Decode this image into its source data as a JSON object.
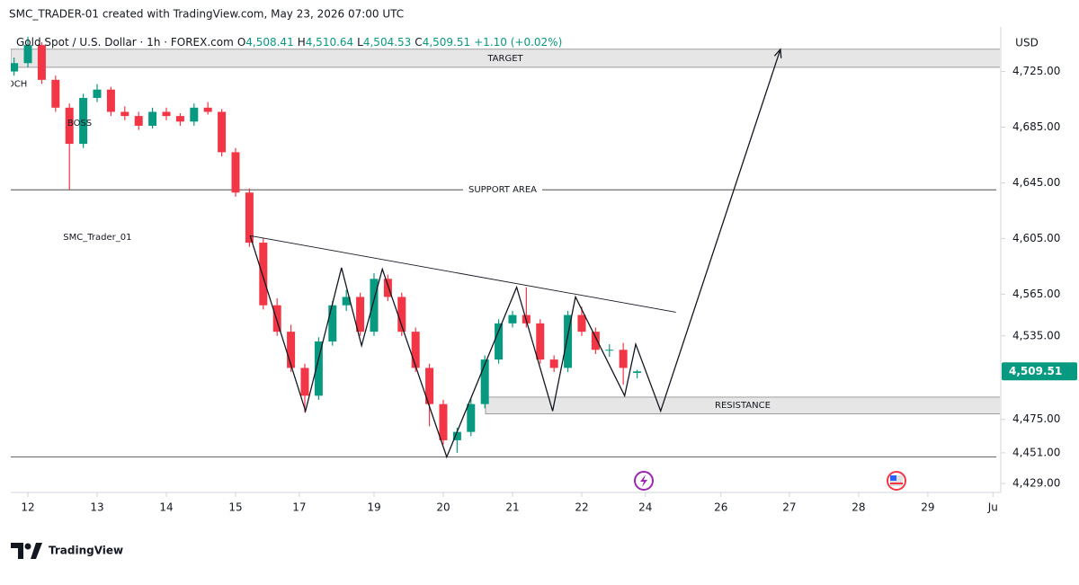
{
  "header": "SMC_TRADER-01 created with TradingView.com, May 23, 2026 07:00 UTC",
  "brand": "TradingView",
  "chart_data": {
    "type": "candlestick",
    "symbol": "Gold Spot / U.S. Dollar · 1h · FOREX.com",
    "legend": {
      "o": "O",
      "open": {
        "value": 4508.41,
        "label": "4,508.41"
      },
      "h": "H",
      "high": {
        "value": 4510.64,
        "label": "4,510.64"
      },
      "l": "L",
      "low": {
        "value": 4504.53,
        "label": "4,504.53"
      },
      "c": "C",
      "close": {
        "value": 4509.51,
        "label": "4,509.51"
      },
      "change": "+1.10 (+0.02%)"
    },
    "currency": "USD",
    "up_color": "#089981",
    "down_color": "#f23645",
    "x": [
      -0.2,
      0,
      0.2,
      0.4,
      0.6,
      0.8,
      1,
      1.2,
      1.4,
      1.6,
      1.8,
      2,
      2.2,
      2.4,
      2.6,
      2.8,
      3,
      3.2,
      3.4,
      3.6,
      3.8,
      4,
      4.2,
      4.4,
      4.6,
      4.8,
      5,
      5.2,
      5.4,
      5.6,
      5.8,
      6,
      6.2,
      6.4,
      6.6,
      6.8,
      7,
      7.2,
      7.4,
      7.6,
      7.8,
      8,
      8.2,
      8.4,
      8.6,
      8.8
    ],
    "open": [
      4725,
      4731,
      4744,
      4719,
      4699,
      4673,
      4706,
      4712,
      4696,
      4693,
      4686,
      4696,
      4693,
      4689,
      4699,
      4696,
      4667,
      4638,
      4602,
      4557,
      4538,
      4512,
      4492,
      4531,
      4557,
      4563,
      4538,
      4576,
      4563,
      4538,
      4512,
      4486,
      4460,
      4466,
      4486,
      4518,
      4544,
      4550,
      4544,
      4518,
      4512,
      4550,
      4538,
      4525,
      4525,
      4508.41
    ],
    "high": [
      4735,
      4750,
      4746,
      4722,
      4702,
      4709,
      4716,
      4714,
      4700,
      4696,
      4699,
      4699,
      4695,
      4702,
      4703,
      4698,
      4670,
      4641,
      4605,
      4562,
      4543,
      4515,
      4534,
      4560,
      4568,
      4566,
      4580,
      4579,
      4566,
      4541,
      4515,
      4489,
      4469,
      4490,
      4521,
      4547,
      4553,
      4570,
      4547,
      4521,
      4553,
      4556,
      4541,
      4529,
      4530,
      4510.64
    ],
    "low": [
      4722,
      4728,
      4716,
      4696,
      4640,
      4670,
      4703,
      4693,
      4690,
      4683,
      4684,
      4690,
      4686,
      4686,
      4694,
      4664,
      4635,
      4599,
      4554,
      4535,
      4509,
      4480,
      4489,
      4528,
      4553,
      4535,
      4535,
      4560,
      4535,
      4509,
      4470,
      4457,
      4451,
      4463,
      4483,
      4515,
      4541,
      4541,
      4515,
      4509,
      4509,
      4535,
      4522,
      4520,
      4500,
      4504.53
    ],
    "close": [
      4731,
      4744,
      4719,
      4699,
      4673,
      4706,
      4712,
      4696,
      4693,
      4686,
      4696,
      4693,
      4689,
      4699,
      4696,
      4667,
      4638,
      4602,
      4557,
      4538,
      4512,
      4492,
      4531,
      4557,
      4563,
      4538,
      4576,
      4563,
      4538,
      4512,
      4486,
      4460,
      4466,
      4486,
      4518,
      4544,
      4550,
      4544,
      4518,
      4512,
      4550,
      4538,
      4525,
      4525,
      4512,
      4509.51
    ],
    "price_tag": {
      "value": 4509.51,
      "label": "4,509.51"
    },
    "xlim": [
      -0.247,
      14.04
    ],
    "ylim": [
      4422.5,
      4757
    ],
    "xticks": [
      {
        "value": 0,
        "label": "12"
      },
      {
        "value": 1,
        "label": "13"
      },
      {
        "value": 2,
        "label": "14"
      },
      {
        "value": 3,
        "label": "15"
      },
      {
        "value": 3.92,
        "label": "17"
      },
      {
        "value": 5,
        "label": "19"
      },
      {
        "value": 6,
        "label": "20"
      },
      {
        "value": 7,
        "label": "21"
      },
      {
        "value": 8,
        "label": "22"
      },
      {
        "value": 8.92,
        "label": "24"
      },
      {
        "value": 10.01,
        "label": "26"
      },
      {
        "value": 11,
        "label": "27"
      },
      {
        "value": 12,
        "label": "28"
      },
      {
        "value": 13,
        "label": "29"
      },
      {
        "value": 13.94,
        "label": "Ju"
      }
    ],
    "yticks": [
      {
        "value": 4725,
        "label": "4,725.00"
      },
      {
        "value": 4685,
        "label": "4,685.00"
      },
      {
        "value": 4645,
        "label": "4,645.00"
      },
      {
        "value": 4605,
        "label": "4,605.00"
      },
      {
        "value": 4565,
        "label": "4,565.00"
      },
      {
        "value": 4535,
        "label": "4,535.00"
      },
      {
        "value": 4475,
        "label": "4,475.00"
      },
      {
        "value": 4451,
        "label": "4,451.00"
      },
      {
        "value": 4429,
        "label": "4,429.00"
      }
    ],
    "zones": [
      {
        "label": "TARGET",
        "low": 4728,
        "high": 4741
      },
      {
        "label": "RESISTANCE",
        "low": 4479,
        "high": 4491,
        "x_start": 6.61
      }
    ],
    "levels": [
      {
        "label": "SUPPORT AREA",
        "value": 4640
      },
      {
        "value": 4448
      }
    ],
    "zigzag": {
      "x": [
        3.21,
        4.01,
        4.53,
        4.82,
        5.12,
        6.05,
        7.06,
        7.58,
        7.91,
        8.62,
        8.78,
        9.14,
        10.87
      ],
      "y": [
        4607,
        4481,
        4584,
        4528,
        4583,
        4448,
        4570,
        4481,
        4563,
        4492,
        4529,
        4481,
        4741
      ]
    },
    "trendline": {
      "x": [
        3.21,
        9.36
      ],
      "y": [
        4607,
        4552
      ]
    },
    "annotations": [
      {
        "text": "OCH",
        "x": -0.3,
        "y": 4716
      },
      {
        "text": "BOSS",
        "x": 0.57,
        "y": 4688
      },
      {
        "text": "SMC_Trader_01",
        "x": 0.51,
        "y": 4606
      }
    ]
  }
}
